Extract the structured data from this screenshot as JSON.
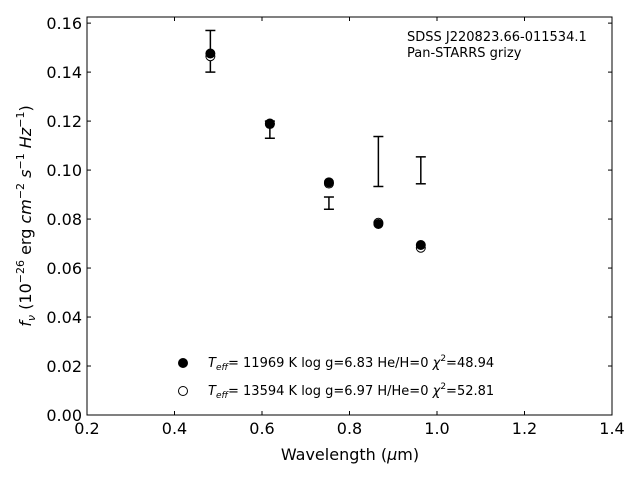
{
  "chart_data": {
    "type": "scatter",
    "xlabel": "Wavelength (μm)",
    "ylabel": "f_ν (10^-26 erg cm^-2 s^-1 Hz^-1)",
    "xlim": [
      0.2,
      1.4
    ],
    "ylim": [
      0.0,
      0.1625
    ],
    "xticks": [
      0.2,
      0.4,
      0.6,
      0.8,
      1.0,
      1.2,
      1.4
    ],
    "xtick_labels": [
      "0.2",
      "0.4",
      "0.6",
      "0.8",
      "1.0",
      "1.2",
      "1.4"
    ],
    "yticks": [
      0.0,
      0.02,
      0.04,
      0.06,
      0.08,
      0.1,
      0.12,
      0.14,
      0.16
    ],
    "ytick_labels": [
      "0.00",
      "0.02",
      "0.04",
      "0.06",
      "0.08",
      "0.10",
      "0.12",
      "0.14",
      "0.16"
    ],
    "annotation_lines": [
      "SDSS J220823.66-011534.1",
      "Pan-STARRS grizy"
    ],
    "legend_placement": "bottom-center",
    "errorbars": {
      "x": [
        0.482,
        0.618,
        0.753,
        0.866,
        0.963
      ],
      "y": [
        0.1485,
        0.1165,
        0.0865,
        0.1035,
        0.0999
      ],
      "yerr": [
        0.0085,
        0.0035,
        0.0025,
        0.0102,
        0.0055
      ]
    },
    "series": [
      {
        "marker": "filled-circle",
        "color": "#000000",
        "legend": {
          "teff": "11969",
          "logg_text": "log g=6.83",
          "comp_text": "He/H=0",
          "chi_text": "=48.94"
        },
        "x": [
          0.482,
          0.618,
          0.753,
          0.866,
          0.963
        ],
        "y": [
          0.1476,
          0.1188,
          0.095,
          0.078,
          0.0694
        ]
      },
      {
        "marker": "open-circle",
        "color": "#000000",
        "legend": {
          "teff": "13594",
          "logg_text": "log g=6.97",
          "comp_text": "H/He=0",
          "chi_text": "=52.81"
        },
        "x": [
          0.482,
          0.618,
          0.753,
          0.866,
          0.963
        ],
        "y": [
          0.1465,
          0.119,
          0.0945,
          0.0785,
          0.0683
        ]
      }
    ]
  }
}
